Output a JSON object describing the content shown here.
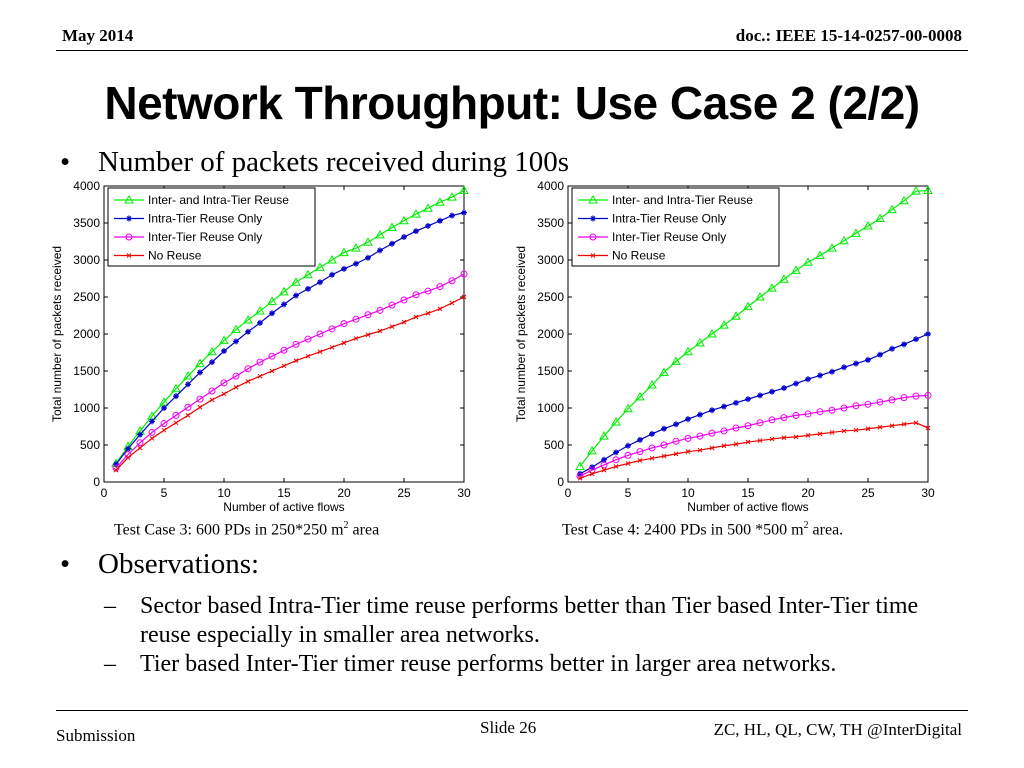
{
  "header": {
    "date": "May 2014",
    "doc": "doc.: IEEE 15-14-0257-00-0008"
  },
  "title": "Network Throughput: Use Case 2 (2/2)",
  "bullet1": "Number of packets received during 100s",
  "bullet2": "Observations:",
  "observations": [
    "Sector based Intra-Tier time reuse performs better than Tier based Inter-Tier time reuse especially in smaller area networks.",
    "Tier based Inter-Tier timer reuse performs better in larger area networks."
  ],
  "captions": {
    "left": {
      "pre": "Test Case 3: 600 PDs in 250*250 m",
      "sup": "2",
      "post": " area"
    },
    "right": {
      "pre": "Test Case 4: 2400 PDs in 500 *500 m",
      "sup": "2",
      "post": " area."
    }
  },
  "footer": {
    "left": "Submission",
    "slide": "Slide 26",
    "right": "ZC, HL, QL, CW, TH @InterDigital"
  },
  "colors": {
    "green": "#00ee00",
    "blue": "#0000cc",
    "magenta": "#ee00ee",
    "red": "#ee0000"
  },
  "chart_data": [
    {
      "type": "line",
      "xlabel": "Number of active flows",
      "ylabel": "Total number of packets received",
      "xlim": [
        0,
        30
      ],
      "ylim": [
        0,
        4000
      ],
      "xticks": [
        0,
        5,
        10,
        15,
        20,
        25,
        30
      ],
      "yticks": [
        0,
        500,
        1000,
        1500,
        2000,
        2500,
        3000,
        3500,
        4000
      ],
      "legend_position": "top-left",
      "x": [
        1,
        2,
        3,
        4,
        5,
        6,
        7,
        8,
        9,
        10,
        11,
        12,
        13,
        14,
        15,
        16,
        17,
        18,
        19,
        20,
        21,
        22,
        23,
        24,
        25,
        26,
        27,
        28,
        29,
        30
      ],
      "series": [
        {
          "name": "Inter- and Intra-Tier Reuse",
          "color": "green",
          "marker": "triangle",
          "values": [
            250,
            480,
            690,
            890,
            1080,
            1260,
            1430,
            1600,
            1760,
            1910,
            2060,
            2190,
            2310,
            2440,
            2570,
            2700,
            2800,
            2900,
            3000,
            3100,
            3160,
            3240,
            3340,
            3440,
            3530,
            3620,
            3700,
            3780,
            3850,
            3940
          ]
        },
        {
          "name": "Intra-Tier Reuse Only",
          "color": "blue",
          "marker": "star",
          "values": [
            240,
            450,
            640,
            820,
            1000,
            1160,
            1320,
            1480,
            1620,
            1770,
            1900,
            2030,
            2150,
            2280,
            2400,
            2520,
            2610,
            2700,
            2800,
            2880,
            2950,
            3030,
            3130,
            3220,
            3310,
            3390,
            3460,
            3530,
            3600,
            3640
          ]
        },
        {
          "name": "Inter-Tier Reuse Only",
          "color": "magenta",
          "marker": "circle",
          "values": [
            190,
            370,
            530,
            670,
            790,
            900,
            1010,
            1120,
            1230,
            1340,
            1430,
            1530,
            1620,
            1700,
            1780,
            1860,
            1930,
            2000,
            2070,
            2140,
            2200,
            2260,
            2320,
            2390,
            2460,
            2530,
            2580,
            2640,
            2720,
            2810
          ]
        },
        {
          "name": "No Reuse",
          "color": "red",
          "marker": "x",
          "values": [
            160,
            330,
            460,
            590,
            700,
            800,
            900,
            1010,
            1110,
            1190,
            1280,
            1360,
            1430,
            1500,
            1570,
            1640,
            1700,
            1760,
            1820,
            1880,
            1940,
            1990,
            2040,
            2100,
            2160,
            2230,
            2280,
            2340,
            2420,
            2500
          ]
        }
      ]
    },
    {
      "type": "line",
      "xlabel": "Number of active flows",
      "ylabel": "Total number of packets received",
      "xlim": [
        0,
        30
      ],
      "ylim": [
        0,
        4000
      ],
      "xticks": [
        0,
        5,
        10,
        15,
        20,
        25,
        30
      ],
      "yticks": [
        0,
        500,
        1000,
        1500,
        2000,
        2500,
        3000,
        3500,
        4000
      ],
      "legend_position": "top-left",
      "x": [
        1,
        2,
        3,
        4,
        5,
        6,
        7,
        8,
        9,
        10,
        11,
        12,
        13,
        14,
        15,
        16,
        17,
        18,
        19,
        20,
        21,
        22,
        23,
        24,
        25,
        26,
        27,
        28,
        29,
        30
      ],
      "series": [
        {
          "name": "Inter- and Intra-Tier Reuse",
          "color": "green",
          "marker": "triangle",
          "values": [
            210,
            420,
            620,
            810,
            990,
            1150,
            1310,
            1480,
            1630,
            1760,
            1880,
            2000,
            2120,
            2240,
            2370,
            2500,
            2620,
            2740,
            2860,
            2970,
            3060,
            3160,
            3260,
            3360,
            3460,
            3560,
            3680,
            3800,
            3930,
            3940
          ]
        },
        {
          "name": "Intra-Tier Reuse Only",
          "color": "blue",
          "marker": "star",
          "values": [
            110,
            200,
            300,
            400,
            490,
            570,
            650,
            720,
            780,
            850,
            910,
            970,
            1020,
            1070,
            1120,
            1170,
            1220,
            1270,
            1330,
            1390,
            1440,
            1490,
            1550,
            1600,
            1650,
            1720,
            1800,
            1860,
            1930,
            2000
          ]
        },
        {
          "name": "Inter-Tier Reuse Only",
          "color": "magenta",
          "marker": "circle",
          "values": [
            80,
            160,
            230,
            300,
            360,
            410,
            460,
            500,
            550,
            590,
            620,
            660,
            690,
            730,
            760,
            800,
            840,
            870,
            900,
            920,
            950,
            970,
            1000,
            1030,
            1050,
            1080,
            1110,
            1140,
            1160,
            1170
          ]
        },
        {
          "name": "No Reuse",
          "color": "red",
          "marker": "x",
          "values": [
            50,
            110,
            160,
            210,
            250,
            290,
            320,
            350,
            380,
            410,
            430,
            460,
            490,
            510,
            540,
            560,
            580,
            600,
            610,
            630,
            650,
            670,
            690,
            700,
            720,
            740,
            760,
            780,
            800,
            730
          ]
        }
      ]
    }
  ]
}
